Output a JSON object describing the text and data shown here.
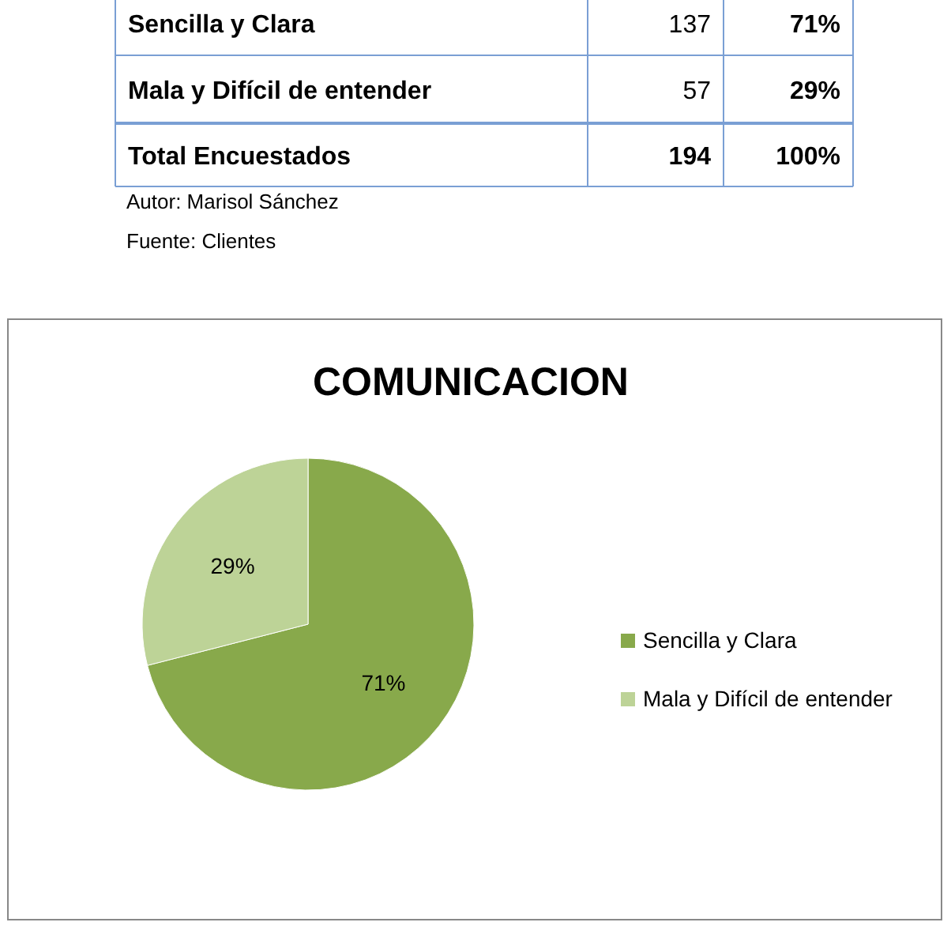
{
  "chart_data": [
    {
      "type": "other",
      "annotations": [
        "Sencilla y Clara",
        "137",
        "71%",
        "Mala y Difícil de entender",
        "57",
        "29%",
        "Total Encuestados",
        "194",
        "100%",
        "Autor: Marisol Sánchez",
        "Fuente: Clientes"
      ]
    },
    {
      "type": "pie",
      "title": "COMUNICACION",
      "categories": [
        "Sencilla y Clara",
        "Mala y Difícil de entender"
      ],
      "values": [
        71,
        29
      ],
      "colors": [
        "#88a94b",
        "#bdd397"
      ],
      "value_labels": [
        "71%",
        "29%"
      ],
      "legend": "right"
    }
  ]
}
